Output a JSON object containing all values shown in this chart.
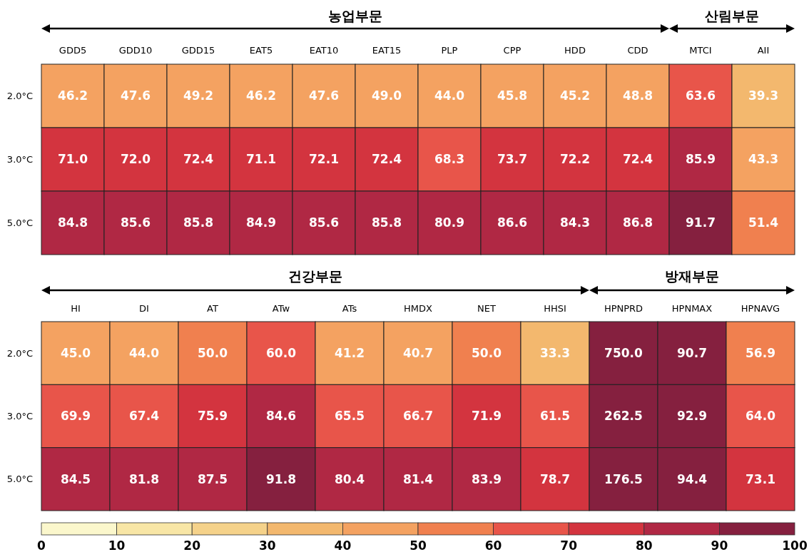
{
  "chart_data": [
    {
      "type": "heatmap",
      "categories": [
        "GDD5",
        "GDD10",
        "GDD15",
        "EAT5",
        "EAT10",
        "EAT15",
        "PLP",
        "CPP",
        "HDD",
        "CDD",
        "MTCI",
        "AII"
      ],
      "y_categories": [
        "2.0°C",
        "3.0°C",
        "5.0°C"
      ],
      "cells": [
        [
          46.2,
          47.6,
          49.2,
          46.2,
          47.6,
          49.0,
          44.0,
          45.8,
          45.2,
          48.8,
          63.6,
          39.3
        ],
        [
          71.0,
          72.0,
          72.4,
          71.1,
          72.1,
          72.4,
          68.3,
          73.7,
          72.2,
          72.4,
          85.9,
          43.3
        ],
        [
          84.8,
          85.6,
          85.8,
          84.9,
          85.6,
          85.8,
          80.9,
          86.6,
          84.3,
          86.8,
          91.7,
          51.4
        ]
      ],
      "cell_labels": [
        [
          "46.2",
          "47.6",
          "49.2",
          "46.2",
          "47.6",
          "49.0",
          "44.0",
          "45.8",
          "45.2",
          "48.8",
          "63.6",
          "39.3"
        ],
        [
          "71.0",
          "72.0",
          "72.4",
          "71.1",
          "72.1",
          "72.4",
          "68.3",
          "73.7",
          "72.2",
          "72.4",
          "85.9",
          "43.3"
        ],
        [
          "84.8",
          "85.6",
          "85.8",
          "84.9",
          "85.6",
          "85.8",
          "80.9",
          "86.6",
          "84.3",
          "86.8",
          "91.7",
          "51.4"
        ]
      ],
      "annotations": [
        "농업부문",
        "산림부문"
      ]
    },
    {
      "type": "heatmap",
      "categories": [
        "HI",
        "DI",
        "AT",
        "ATw",
        "ATs",
        "HMDX",
        "NET",
        "HHSI",
        "HPNPRD",
        "HPNMAX",
        "HPNAVG"
      ],
      "y_categories": [
        "2.0°C",
        "3.0°C",
        "5.0°C"
      ],
      "cells": [
        [
          45.0,
          44.0,
          50.0,
          60.0,
          41.2,
          40.7,
          50.0,
          33.3,
          750.0,
          90.7,
          56.9
        ],
        [
          69.9,
          67.4,
          75.9,
          84.6,
          65.5,
          66.7,
          71.9,
          61.5,
          262.5,
          92.9,
          64.0
        ],
        [
          84.5,
          81.8,
          87.5,
          91.8,
          80.4,
          81.4,
          83.9,
          78.7,
          176.5,
          94.4,
          73.1
        ]
      ],
      "cell_labels": [
        [
          "45.0",
          "44.0",
          "50.0",
          "60.0",
          "41.2",
          "40.7",
          "50.0",
          "33.3",
          "750.0",
          "90.7",
          "56.9"
        ],
        [
          "69.9",
          "67.4",
          "75.9",
          "84.6",
          "65.5",
          "66.7",
          "71.9",
          "61.5",
          "262.5",
          "92.9",
          "64.0"
        ],
        [
          "84.5",
          "81.8",
          "87.5",
          "91.8",
          "80.4",
          "81.4",
          "83.9",
          "78.7",
          "176.5",
          "94.4",
          "73.1"
        ]
      ],
      "clim": [
        0,
        100
      ],
      "cticks": [
        0,
        10,
        20,
        30,
        40,
        50,
        60,
        70,
        80,
        90,
        100
      ],
      "annotations": [
        "건강부문",
        "방재부문"
      ]
    }
  ]
}
